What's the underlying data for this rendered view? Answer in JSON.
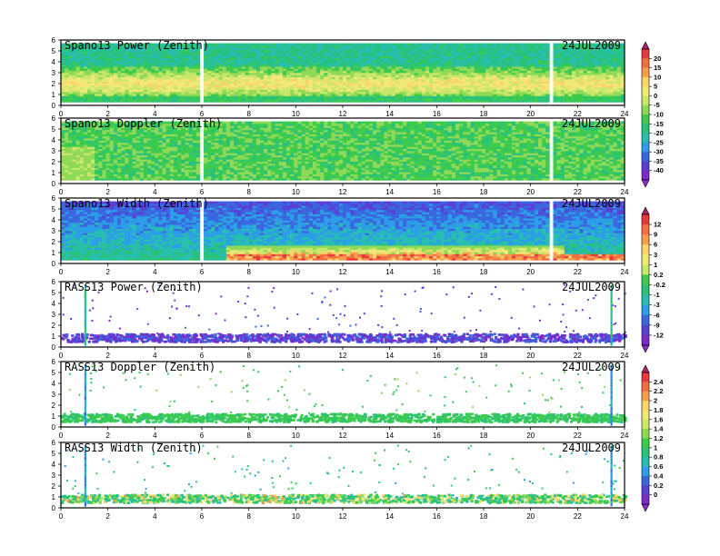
{
  "figure": {
    "date_label": "24JUL2009",
    "panels": [
      {
        "title": "Spano13 Power (Zenith)",
        "date": "24JUL2009",
        "kind": "fill",
        "field": "power"
      },
      {
        "title": "Spano13 Doppler (Zenith)",
        "date": "24JUL2009",
        "kind": "fill",
        "field": "doppler"
      },
      {
        "title": "Spano13 Width (Zenith)",
        "date": "24JUL2009",
        "kind": "fill",
        "field": "width"
      },
      {
        "title": "RASS13 Power (Zenith)",
        "date": "24JUL2009",
        "kind": "sparse",
        "field": "rpower"
      },
      {
        "title": "RASS13 Doppler (Zenith)",
        "date": "24JUL2009",
        "kind": "sparse",
        "field": "rdoppler"
      },
      {
        "title": "RASS13 Width (Zenith)",
        "date": "24JUL2009",
        "kind": "sparse",
        "field": "rwidth"
      }
    ],
    "colorbars": [
      {
        "labels": [
          "20",
          "15",
          "10",
          "5",
          "0",
          "-5",
          "-10",
          "-15",
          "-20",
          "-25",
          "-30",
          "-35",
          "-40"
        ]
      },
      {
        "labels": [
          "12",
          "9",
          "6",
          "3",
          "1",
          "0.2",
          "-0.2",
          "-1",
          "-3",
          "-6",
          "-9",
          "-12"
        ]
      },
      {
        "labels": [
          "2.4",
          "2.2",
          "2",
          "1.8",
          "1.6",
          "1.4",
          "1.2",
          "1",
          "0.8",
          "0.6",
          "0.4",
          "0.2",
          "0"
        ]
      }
    ],
    "palette": [
      "#e8383d",
      "#f46d43",
      "#f89c4e",
      "#fbd56c",
      "#f0e878",
      "#c9e76a",
      "#8fd858",
      "#3ccb4c",
      "#28c27a",
      "#26bfb0",
      "#2b9ee6",
      "#3a66e0",
      "#5a3fd6",
      "#7a2bc9"
    ]
  },
  "chart_data": [
    {
      "type": "heatmap",
      "title": "Spano13 Power (Zenith)",
      "xlabel": "",
      "ylabel": "",
      "x_range": [
        0,
        24
      ],
      "y_range": [
        0,
        6
      ],
      "x_ticks": [
        0,
        2,
        4,
        6,
        8,
        10,
        12,
        14,
        16,
        18,
        20,
        22,
        24
      ],
      "y_ticks": [
        0,
        1,
        2,
        3,
        4,
        5,
        6
      ],
      "colorbar": [
        "20",
        "15",
        "10",
        "5",
        "0",
        "-5",
        "-10",
        "-15",
        "-20",
        "-25",
        "-30",
        "-35",
        "-40"
      ],
      "pattern": "continuous coverage 0.3-5.7 km; stronger power (~5 to 10) near 1.5-2.5 km, weaker aloft; vertical gaps near 6 and 20.8 h"
    },
    {
      "type": "heatmap",
      "title": "Spano13 Doppler (Zenith)",
      "x_range": [
        0,
        24
      ],
      "y_range": [
        0,
        6
      ],
      "x_ticks": [
        0,
        2,
        4,
        6,
        8,
        10,
        12,
        14,
        16,
        18,
        20,
        22,
        24
      ],
      "y_ticks": [
        0,
        1,
        2,
        3,
        4,
        5,
        6
      ],
      "colorbar": [
        "20",
        "15",
        "10",
        "5",
        "0",
        "-5",
        "-10",
        "-15",
        "-20",
        "-25",
        "-30",
        "-35",
        "-40"
      ],
      "pattern": "mostly green/light green, values near -10 to -20"
    },
    {
      "type": "heatmap",
      "title": "Spano13 Width (Zenith)",
      "x_range": [
        0,
        24
      ],
      "y_range": [
        0,
        6
      ],
      "x_ticks": [
        0,
        2,
        4,
        6,
        8,
        10,
        12,
        14,
        16,
        18,
        20,
        22,
        24
      ],
      "y_ticks": [
        0,
        1,
        2,
        3,
        4,
        5,
        6
      ],
      "colorbar": [
        "12",
        "9",
        "6",
        "3",
        "1",
        "0.2",
        "-0.2",
        "-1",
        "-3",
        "-6",
        "-9",
        "-12"
      ],
      "pattern": "blue aloft (negative), green mid, red/orange patches below 1.5 km between 7-21 h"
    },
    {
      "type": "scatter",
      "title": "RASS13 Power (Zenith)",
      "x_range": [
        0,
        24
      ],
      "y_range": [
        0,
        6
      ],
      "x_ticks": [
        0,
        2,
        4,
        6,
        8,
        10,
        12,
        14,
        16,
        18,
        20,
        22,
        24
      ],
      "y_ticks": [
        0,
        1,
        2,
        3,
        4,
        5,
        6
      ],
      "colorbar": [
        "12",
        "9",
        "6",
        "3",
        "1",
        "0.2",
        "-0.2",
        "-1",
        "-3",
        "-6",
        "-9",
        "-12"
      ],
      "pattern": "dense band 0.5-1.3 km (purple/blue), sparse points aloft; vertical columns near 1 and 23.4 h"
    },
    {
      "type": "scatter",
      "title": "RASS13 Doppler (Zenith)",
      "x_range": [
        0,
        24
      ],
      "y_range": [
        0,
        6
      ],
      "x_ticks": [
        0,
        2,
        4,
        6,
        8,
        10,
        12,
        14,
        16,
        18,
        20,
        22,
        24
      ],
      "y_ticks": [
        0,
        1,
        2,
        3,
        4,
        5,
        6
      ],
      "colorbar": [
        "2.4",
        "2.2",
        "2",
        "1.8",
        "1.6",
        "1.4",
        "1.2",
        "1",
        "0.8",
        "0.6",
        "0.4",
        "0.2",
        "0"
      ],
      "pattern": "dense green band 0.5-1.3 km, sparse green points aloft"
    },
    {
      "type": "scatter",
      "title": "RASS13 Width (Zenith)",
      "x_range": [
        0,
        24
      ],
      "y_range": [
        0,
        6
      ],
      "x_ticks": [
        0,
        2,
        4,
        6,
        8,
        10,
        12,
        14,
        16,
        18,
        20,
        22,
        24
      ],
      "y_ticks": [
        0,
        1,
        2,
        3,
        4,
        5,
        6
      ],
      "colorbar": [
        "2.4",
        "2.2",
        "2",
        "1.8",
        "1.6",
        "1.4",
        "1.2",
        "1",
        "0.8",
        "0.6",
        "0.4",
        "0.2",
        "0"
      ],
      "pattern": "green band near 0.5-1.2 km with orange/yellow speckle, sparse aloft"
    }
  ]
}
